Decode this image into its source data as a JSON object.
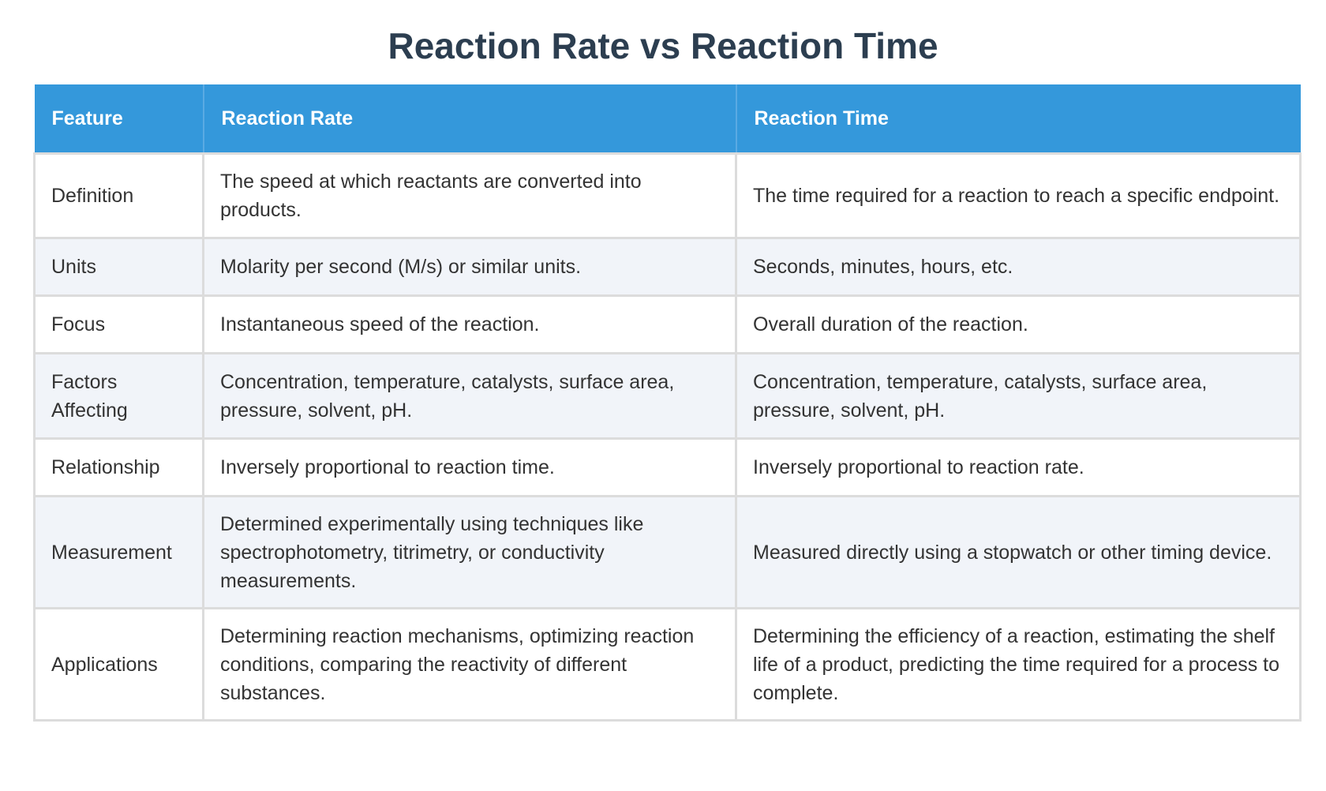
{
  "title": "Reaction Rate vs Reaction Time",
  "table": {
    "headers": [
      "Feature",
      "Reaction Rate",
      "Reaction Time"
    ],
    "rows": [
      {
        "feature": "Definition",
        "rate": "The speed at which reactants are converted into products.",
        "time": "The time required for a reaction to reach a specific endpoint."
      },
      {
        "feature": "Units",
        "rate": "Molarity per second (M/s) or similar units.",
        "time": "Seconds, minutes, hours, etc."
      },
      {
        "feature": "Focus",
        "rate": "Instantaneous speed of the reaction.",
        "time": "Overall duration of the reaction."
      },
      {
        "feature": "Factors Affecting",
        "rate": "Concentration, temperature, catalysts, surface area, pressure, solvent, pH.",
        "time": "Concentration, temperature, catalysts, surface area, pressure, solvent, pH."
      },
      {
        "feature": "Relationship",
        "rate": "Inversely proportional to reaction time.",
        "time": "Inversely proportional to reaction rate."
      },
      {
        "feature": "Measurement",
        "rate": "Determined experimentally using techniques like spectrophotometry, titrimetry, or conductivity measurements.",
        "time": "Measured directly using a stopwatch or other timing device."
      },
      {
        "feature": "Applications",
        "rate": "Determining reaction mechanisms, optimizing reaction conditions, comparing the reactivity of different substances.",
        "time": "Determining the efficiency of a reaction, estimating the shelf life of a product, predicting the time required for a process to complete."
      }
    ]
  },
  "colors": {
    "header_bg": "#3498db",
    "title": "#2c3e50",
    "stripe": "#f1f4f9"
  }
}
